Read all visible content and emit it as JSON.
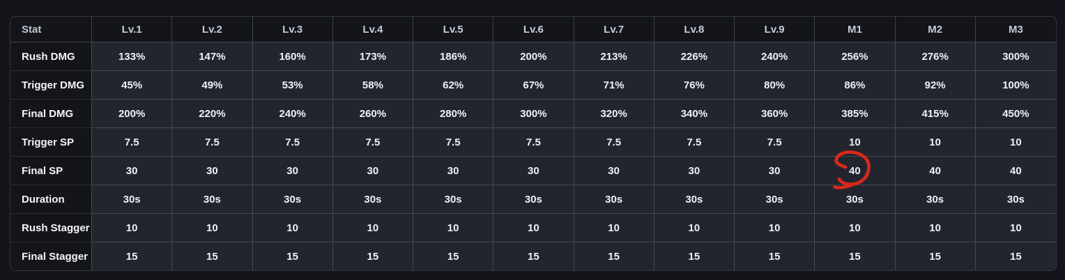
{
  "colors": {
    "page_bg": "#14151a",
    "cell_bg": "#22252d",
    "label_cell_bg": "#141519",
    "grid_line": "#454a54",
    "header_text": "#c6ccd6",
    "value_text": "#eef1f5",
    "annotation_red": "#d8291b"
  },
  "chart_data": {
    "type": "table",
    "title": "Skill level stats table",
    "columns": [
      "Stat",
      "Lv.1",
      "Lv.2",
      "Lv.3",
      "Lv.4",
      "Lv.5",
      "Lv.6",
      "Lv.7",
      "Lv.8",
      "Lv.9",
      "M1",
      "M2",
      "M3"
    ],
    "rows": [
      {
        "label": "Rush DMG",
        "values": [
          "133%",
          "147%",
          "160%",
          "173%",
          "186%",
          "200%",
          "213%",
          "226%",
          "240%",
          "256%",
          "276%",
          "300%"
        ]
      },
      {
        "label": "Trigger DMG",
        "values": [
          "45%",
          "49%",
          "53%",
          "58%",
          "62%",
          "67%",
          "71%",
          "76%",
          "80%",
          "86%",
          "92%",
          "100%"
        ]
      },
      {
        "label": "Final DMG",
        "values": [
          "200%",
          "220%",
          "240%",
          "260%",
          "280%",
          "300%",
          "320%",
          "340%",
          "360%",
          "385%",
          "415%",
          "450%"
        ]
      },
      {
        "label": "Trigger SP",
        "values": [
          "7.5",
          "7.5",
          "7.5",
          "7.5",
          "7.5",
          "7.5",
          "7.5",
          "7.5",
          "7.5",
          "10",
          "10",
          "10"
        ]
      },
      {
        "label": "Final SP",
        "values": [
          "30",
          "30",
          "30",
          "30",
          "30",
          "30",
          "30",
          "30",
          "30",
          "40",
          "40",
          "40"
        ]
      },
      {
        "label": "Duration",
        "values": [
          "30s",
          "30s",
          "30s",
          "30s",
          "30s",
          "30s",
          "30s",
          "30s",
          "30s",
          "30s",
          "30s",
          "30s"
        ]
      },
      {
        "label": "Rush Stagger",
        "values": [
          "10",
          "10",
          "10",
          "10",
          "10",
          "10",
          "10",
          "10",
          "10",
          "10",
          "10",
          "10"
        ]
      },
      {
        "label": "Final Stagger",
        "values": [
          "15",
          "15",
          "15",
          "15",
          "15",
          "15",
          "15",
          "15",
          "15",
          "15",
          "15",
          "15"
        ]
      }
    ]
  },
  "annotation": {
    "shape": "hand-drawn red circle",
    "color": "#d8291b",
    "circled_row": "Final SP",
    "circled_column": "M1",
    "circled_value": "40"
  }
}
